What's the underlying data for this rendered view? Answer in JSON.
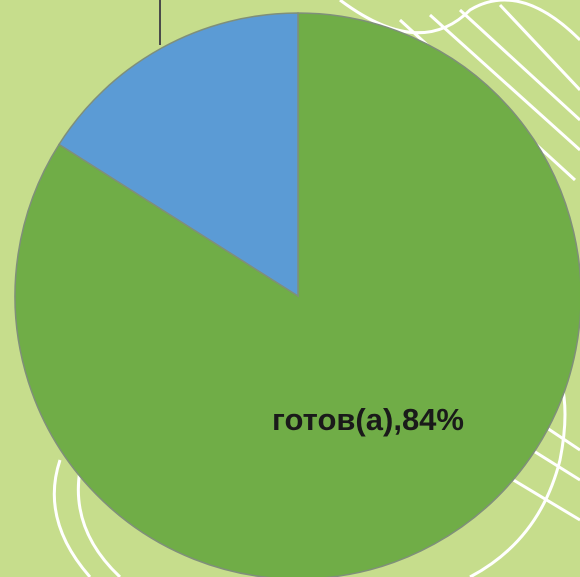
{
  "chart_data": {
    "type": "pie",
    "categories": [
      "готов(а)",
      null
    ],
    "values": [
      84,
      16
    ],
    "value_labels": [
      ",84%",
      null
    ],
    "colors": [
      "#70ad47",
      "#5b9bd5"
    ]
  }
}
